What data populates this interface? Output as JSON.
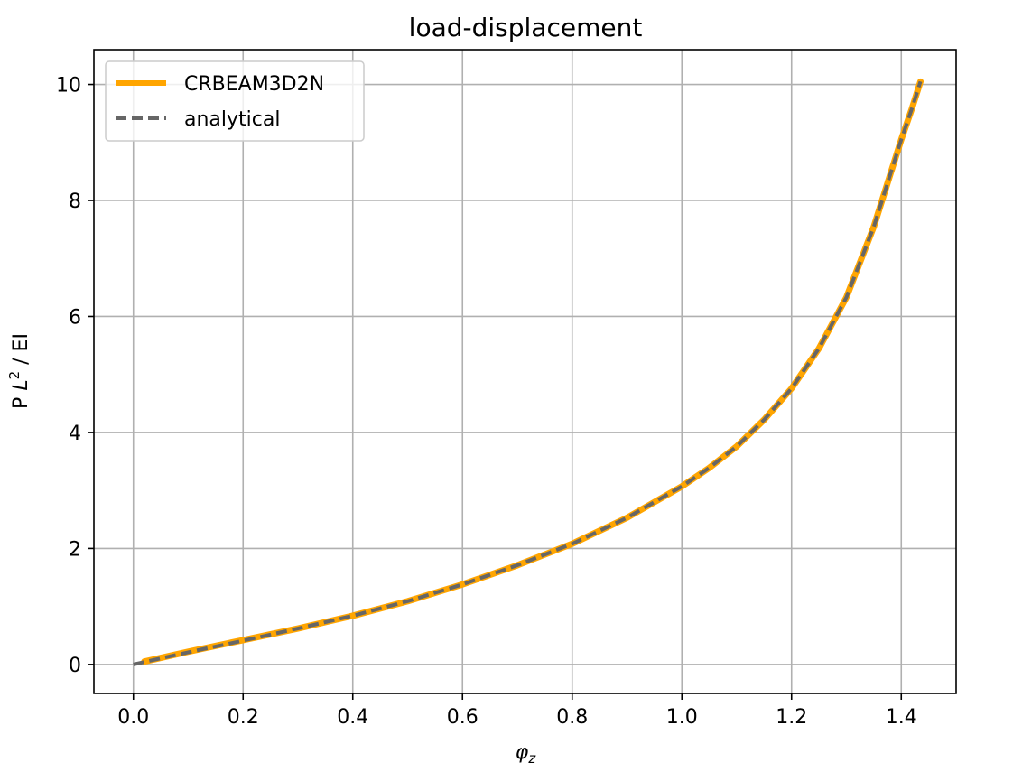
{
  "chart_data": {
    "type": "line",
    "title": "load-displacement",
    "xlabel_symbol": "φ",
    "xlabel_subscript": "z",
    "ylabel_parts": [
      "P ",
      "L",
      "2",
      " / EI"
    ],
    "xlim": [
      -0.072,
      1.5
    ],
    "ylim": [
      -0.5,
      10.6
    ],
    "x_ticks": [
      0.0,
      0.2,
      0.4,
      0.6,
      0.8,
      1.0,
      1.2,
      1.4
    ],
    "x_tick_labels": [
      "0.0",
      "0.2",
      "0.4",
      "0.6",
      "0.8",
      "1.0",
      "1.2",
      "1.4"
    ],
    "y_ticks": [
      0,
      2,
      4,
      6,
      8,
      10
    ],
    "y_tick_labels": [
      "0",
      "2",
      "4",
      "6",
      "8",
      "10"
    ],
    "grid": true,
    "legend_position": "top-left",
    "series": [
      {
        "name": "CRBEAM3D2N",
        "color": "#ffa500",
        "style": "solid",
        "x": [
          0.02,
          0.1,
          0.2,
          0.3,
          0.4,
          0.5,
          0.6,
          0.7,
          0.8,
          0.9,
          1.0,
          1.05,
          1.1,
          1.15,
          1.2,
          1.25,
          1.3,
          1.35,
          1.38,
          1.4,
          1.42,
          1.435
        ],
        "y": [
          0.05,
          0.22,
          0.42,
          0.62,
          0.84,
          1.09,
          1.38,
          1.71,
          2.08,
          2.53,
          3.07,
          3.39,
          3.76,
          4.22,
          4.76,
          5.45,
          6.33,
          7.55,
          8.45,
          9.05,
          9.6,
          10.05
        ]
      },
      {
        "name": "analytical",
        "color": "#666666",
        "style": "dashed",
        "x": [
          0.0,
          0.1,
          0.2,
          0.3,
          0.4,
          0.5,
          0.6,
          0.7,
          0.8,
          0.9,
          1.0,
          1.05,
          1.1,
          1.15,
          1.2,
          1.25,
          1.3,
          1.35,
          1.38,
          1.4,
          1.42,
          1.435
        ],
        "y": [
          0.0,
          0.21,
          0.41,
          0.62,
          0.84,
          1.09,
          1.38,
          1.71,
          2.08,
          2.53,
          3.07,
          3.39,
          3.76,
          4.22,
          4.76,
          5.45,
          6.33,
          7.55,
          8.45,
          9.05,
          9.6,
          10.05
        ]
      }
    ]
  }
}
